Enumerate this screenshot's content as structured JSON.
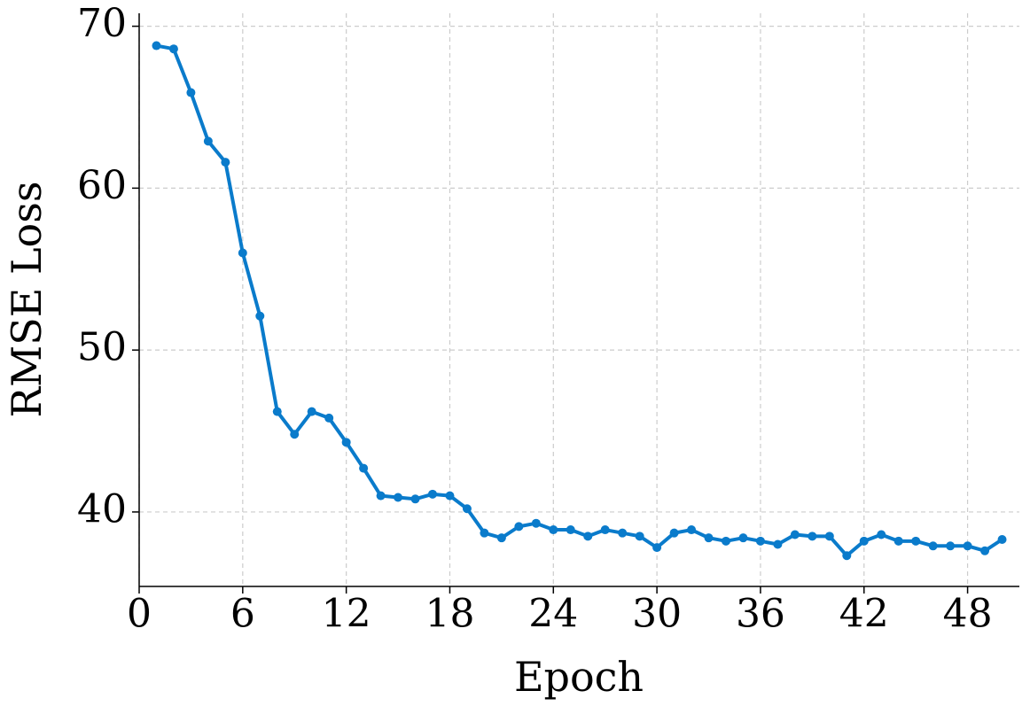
{
  "chart_data": {
    "type": "line",
    "xlabel": "Epoch",
    "ylabel": "RMSE Loss",
    "x": [
      1,
      2,
      3,
      4,
      5,
      6,
      7,
      8,
      9,
      10,
      11,
      12,
      13,
      14,
      15,
      16,
      17,
      18,
      19,
      20,
      21,
      22,
      23,
      24,
      25,
      26,
      27,
      28,
      29,
      30,
      31,
      32,
      33,
      34,
      35,
      36,
      37,
      38,
      39,
      40,
      41,
      42,
      43,
      44,
      45,
      46,
      47,
      48,
      49,
      50
    ],
    "series": [
      {
        "color": "#0a7bcb",
        "values": [
          68.8,
          68.6,
          65.9,
          62.9,
          61.6,
          56.0,
          52.1,
          46.2,
          44.8,
          46.2,
          45.8,
          44.3,
          42.7,
          41.0,
          40.9,
          40.8,
          41.1,
          41.0,
          40.2,
          38.7,
          38.4,
          39.1,
          39.3,
          38.9,
          38.9,
          38.5,
          38.9,
          38.7,
          38.5,
          37.8,
          38.7,
          38.9,
          38.4,
          38.2,
          38.4,
          38.2,
          38.0,
          38.6,
          38.5,
          38.5,
          37.3,
          38.2,
          38.6,
          38.2,
          38.2,
          37.9,
          37.9,
          37.9,
          37.6,
          38.3
        ]
      }
    ],
    "xlim": [
      0,
      51
    ],
    "xticks": [
      0,
      6,
      12,
      18,
      24,
      30,
      36,
      42,
      48
    ],
    "ylim": [
      35.4,
      70.8
    ],
    "yticks": [
      40,
      50,
      60,
      70
    ],
    "grid": true
  }
}
